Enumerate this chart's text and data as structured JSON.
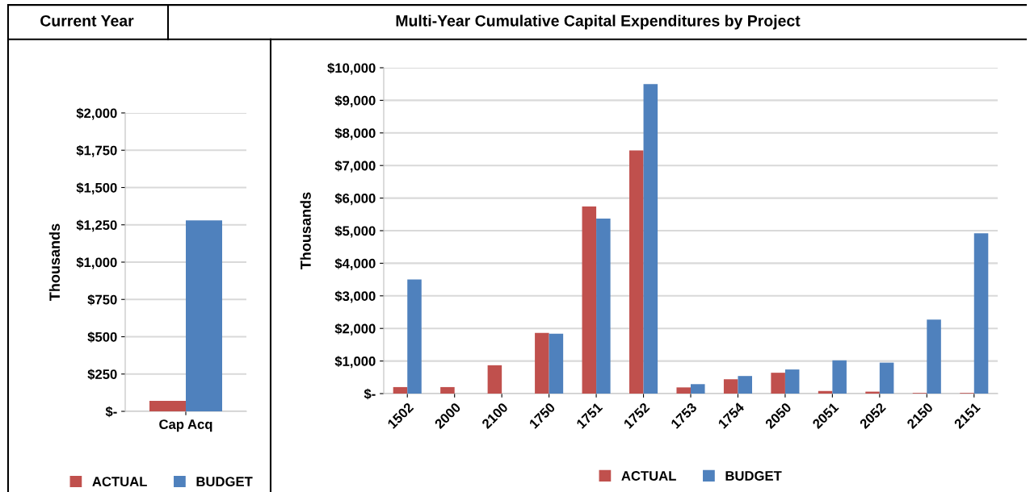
{
  "chart_data": [
    {
      "type": "bar",
      "title": "Current Year",
      "ylabel": "Thousands",
      "categories": [
        "Cap Acq"
      ],
      "series": [
        {
          "name": "ACTUAL",
          "color": "#c0504d",
          "values": [
            70
          ]
        },
        {
          "name": "BUDGET",
          "color": "#4f81bd",
          "values": [
            1280
          ]
        }
      ],
      "ylim": [
        0,
        2000
      ],
      "yticks": [
        {
          "value": 0,
          "label": "$-"
        },
        {
          "value": 250,
          "label": "$250"
        },
        {
          "value": 500,
          "label": "$500"
        },
        {
          "value": 750,
          "label": "$750"
        },
        {
          "value": 1000,
          "label": "$1,000"
        },
        {
          "value": 1250,
          "label": "$1,250"
        },
        {
          "value": 1500,
          "label": "$1,500"
        },
        {
          "value": 1750,
          "label": "$1,750"
        },
        {
          "value": 2000,
          "label": "$2,000"
        }
      ],
      "grid": "y",
      "legend": "bottom"
    },
    {
      "type": "bar",
      "title": "Multi-Year Cumulative Capital Expenditures by Project",
      "ylabel": "Thousands",
      "categories": [
        "1502",
        "2000",
        "2100",
        "1750",
        "1751",
        "1752",
        "1753",
        "1754",
        "2050",
        "2051",
        "2052",
        "2150",
        "2151"
      ],
      "series": [
        {
          "name": "ACTUAL",
          "color": "#c0504d",
          "values": [
            200,
            200,
            870,
            1860,
            5740,
            7460,
            190,
            440,
            640,
            80,
            60,
            20,
            20
          ]
        },
        {
          "name": "BUDGET",
          "color": "#4f81bd",
          "values": [
            3500,
            0,
            0,
            1840,
            5370,
            9500,
            290,
            540,
            740,
            1020,
            950,
            2270,
            4920
          ]
        }
      ],
      "ylim": [
        0,
        10000
      ],
      "yticks": [
        {
          "value": 0,
          "label": "$-"
        },
        {
          "value": 1000,
          "label": "$1,000"
        },
        {
          "value": 2000,
          "label": "$2,000"
        },
        {
          "value": 3000,
          "label": "$3,000"
        },
        {
          "value": 4000,
          "label": "$4,000"
        },
        {
          "value": 5000,
          "label": "$5,000"
        },
        {
          "value": 6000,
          "label": "$6,000"
        },
        {
          "value": 7000,
          "label": "$7,000"
        },
        {
          "value": 8000,
          "label": "$8,000"
        },
        {
          "value": 9000,
          "label": "$9,000"
        },
        {
          "value": 10000,
          "label": "$10,000"
        }
      ],
      "grid": "y",
      "legend": "bottom"
    }
  ]
}
